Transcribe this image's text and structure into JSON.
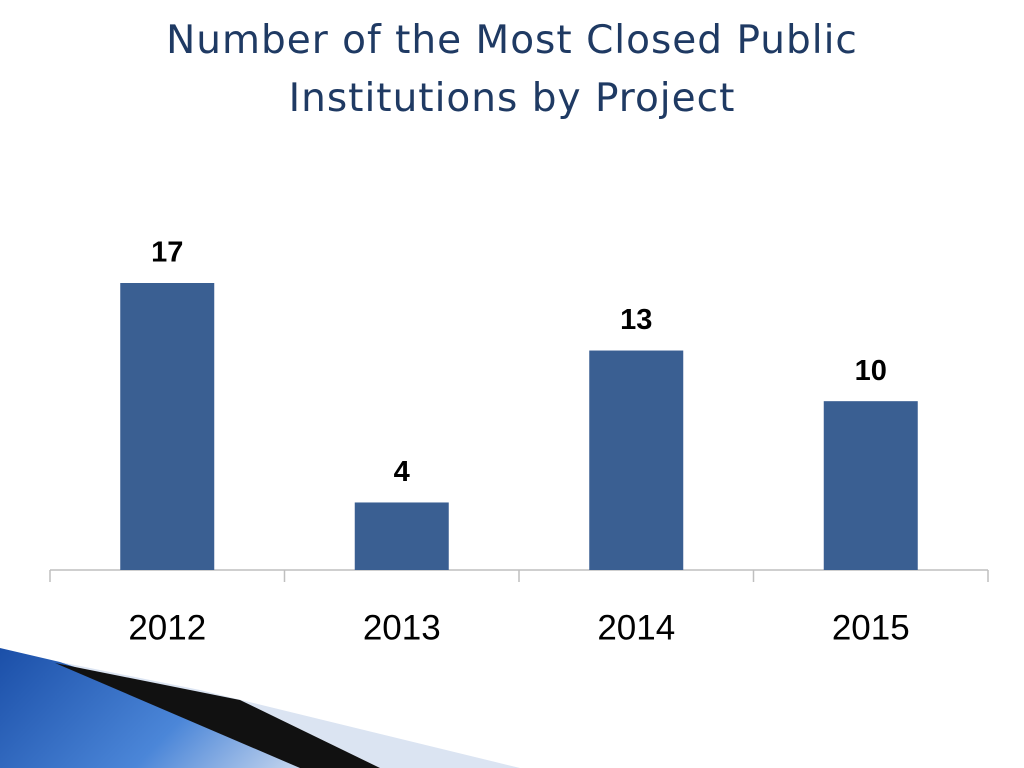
{
  "chart_data": {
    "type": "bar",
    "title": "Number of the Most Closed Public Institutions by Project",
    "categories": [
      "2012",
      "2013",
      "2014",
      "2015"
    ],
    "values": [
      17,
      4,
      13,
      10
    ],
    "color": "#3a5f92"
  }
}
